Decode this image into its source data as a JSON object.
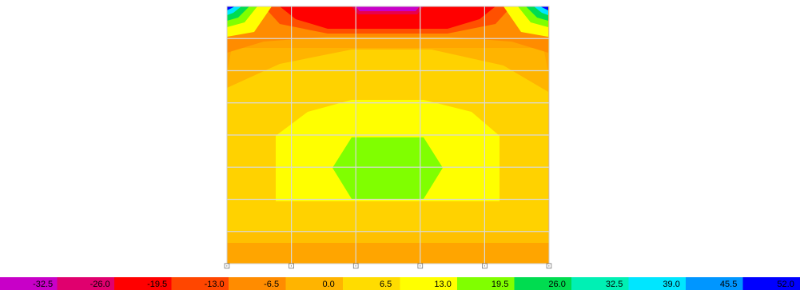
{
  "contour_plot": {
    "levels": [
      -32.5,
      -26.0,
      -19.5,
      -13.0,
      -6.5,
      0.0,
      6.5,
      13.0,
      19.5,
      26.0,
      32.5,
      39.0,
      45.5,
      52.0
    ],
    "legend_labels": [
      "-32.5",
      "-26.0",
      "-19.5",
      "-13.0",
      "-6.5",
      "0.0",
      "6.5",
      "13.0",
      "19.5",
      "26.0",
      "32.5",
      "39.0",
      "45.5",
      "52.0"
    ],
    "legend_colors": [
      "#c800c8",
      "#e0006e",
      "#ff0000",
      "#ff4600",
      "#ff8c00",
      "#ffb400",
      "#ffdc00",
      "#ffff00",
      "#80ff00",
      "#00dc50",
      "#00f0b4",
      "#00e6ff",
      "#0096ff",
      "#0000ff"
    ],
    "support_symbol": "⊡",
    "support_count": 6,
    "grid": true
  }
}
